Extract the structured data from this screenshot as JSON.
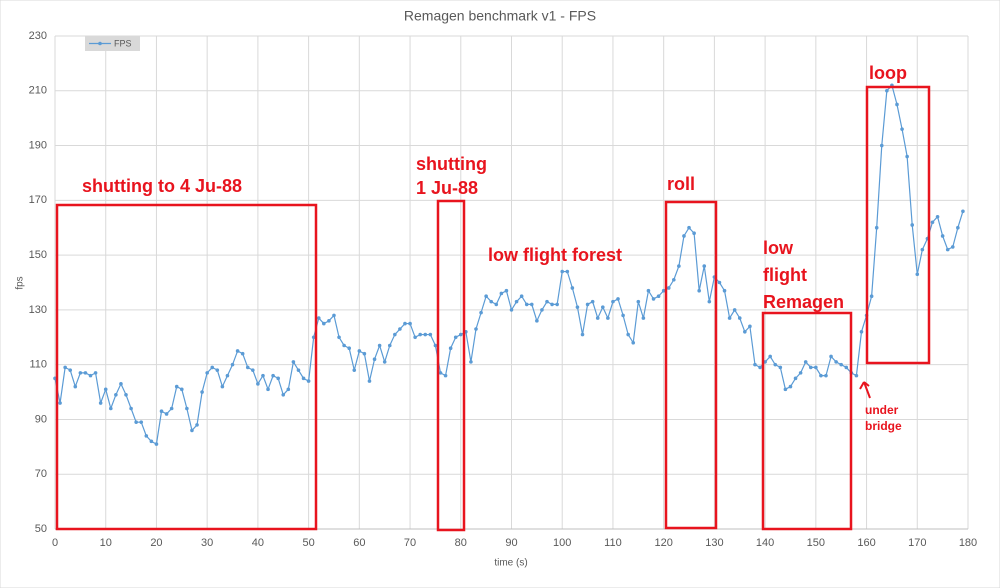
{
  "chart_data": {
    "type": "line",
    "title": "Remagen benchmark v1 - FPS",
    "x_label": "time (s)",
    "y_label": "fps",
    "xlim": [
      0,
      180
    ],
    "xticks": [
      0,
      10,
      20,
      30,
      40,
      50,
      60,
      70,
      80,
      90,
      100,
      110,
      120,
      130,
      140,
      150,
      160,
      170,
      180
    ],
    "ylim": [
      50,
      230
    ],
    "yticks": [
      50,
      70,
      90,
      110,
      130,
      150,
      170,
      190,
      210,
      230
    ],
    "grid": true,
    "legend": "top-left",
    "x": [
      0,
      1,
      2,
      3,
      4,
      5,
      6,
      7,
      8,
      9,
      10,
      11,
      12,
      13,
      14,
      15,
      16,
      17,
      18,
      19,
      20,
      21,
      22,
      23,
      24,
      25,
      26,
      27,
      28,
      29,
      30,
      31,
      32,
      33,
      34,
      35,
      36,
      37,
      38,
      39,
      40,
      41,
      42,
      43,
      44,
      45,
      46,
      47,
      48,
      49,
      50,
      51,
      52,
      53,
      54,
      55,
      56,
      57,
      58,
      59,
      60,
      61,
      62,
      63,
      64,
      65,
      66,
      67,
      68,
      69,
      70,
      71,
      72,
      73,
      74,
      75,
      76,
      77,
      78,
      79,
      80,
      81,
      82,
      83,
      84,
      85,
      86,
      87,
      88,
      89,
      90,
      91,
      92,
      93,
      94,
      95,
      96,
      97,
      98,
      99,
      100,
      101,
      102,
      103,
      104,
      105,
      106,
      107,
      108,
      109,
      110,
      111,
      112,
      113,
      114,
      115,
      116,
      117,
      118,
      119,
      120,
      121,
      122,
      123,
      124,
      125,
      126,
      127,
      128,
      129,
      130,
      131,
      132,
      133,
      134,
      135,
      136,
      137,
      138,
      139,
      140,
      141,
      142,
      143,
      144,
      145,
      146,
      147,
      148,
      149,
      150,
      151,
      152,
      153,
      154,
      155,
      156,
      157,
      158,
      159,
      160,
      161,
      162,
      163,
      164,
      165,
      166,
      167,
      168,
      169,
      170,
      171,
      172,
      173,
      174,
      175,
      176,
      177,
      178,
      179
    ],
    "series": [
      {
        "name": "FPS",
        "color": "#5b9bd5",
        "values": [
          105,
          96,
          109,
          108,
          102,
          107,
          107,
          106,
          107,
          96,
          101,
          94,
          99,
          103,
          99,
          94,
          89,
          89,
          84,
          82,
          81,
          93,
          92,
          94,
          102,
          101,
          94,
          86,
          88,
          100,
          107,
          109,
          108,
          102,
          106,
          110,
          115,
          114,
          109,
          108,
          103,
          106,
          101,
          106,
          105,
          99,
          101,
          111,
          108,
          105,
          104,
          120,
          127,
          125,
          126,
          128,
          120,
          117,
          116,
          108,
          115,
          114,
          104,
          112,
          117,
          111,
          117,
          121,
          123,
          125,
          125,
          120,
          121,
          121,
          121,
          117,
          107,
          106,
          116,
          120,
          121,
          122,
          111,
          123,
          129,
          135,
          133,
          132,
          136,
          137,
          130,
          133,
          135,
          132,
          132,
          126,
          130,
          133,
          132,
          132,
          144,
          144,
          138,
          131,
          121,
          132,
          133,
          127,
          131,
          127,
          133,
          134,
          128,
          121,
          118,
          133,
          127,
          137,
          134,
          135,
          137,
          138,
          141,
          146,
          157,
          160,
          158,
          137,
          146,
          133,
          142,
          140,
          137,
          127,
          130,
          127,
          122,
          124,
          110,
          109,
          111,
          113,
          110,
          109,
          101,
          102,
          105,
          107,
          111,
          109,
          109,
          106,
          106,
          113,
          111,
          110,
          109,
          107,
          106,
          122,
          128,
          135,
          160,
          190,
          210,
          212,
          205,
          196,
          186,
          161,
          143,
          152,
          156,
          162,
          164,
          157,
          152,
          153,
          160,
          166
        ]
      }
    ],
    "annotations": [
      [
        "shutting to 4 Ju-88"
      ],
      [
        "shutting",
        "1 Ju-88"
      ],
      [
        "low flight forest"
      ],
      [
        "roll"
      ],
      [
        "low",
        "flight",
        "Remagen"
      ],
      [
        "loop"
      ],
      [
        "under",
        "bridge"
      ]
    ]
  }
}
